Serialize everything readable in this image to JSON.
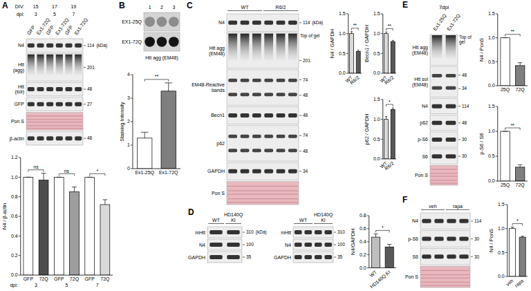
{
  "panels": [
    {
      "letter": "A",
      "header_rows": [
        {
          "label": "DIV:",
          "items": [
            "15",
            "17",
            "19"
          ]
        },
        {
          "label": "dpi:",
          "items": [
            "3",
            "5",
            "7"
          ]
        }
      ],
      "lanes": [
        "GFP",
        "Ex1-72Q",
        "GFP",
        "Ex1-72Q",
        "GFP",
        "Ex1-72Q"
      ],
      "unit": "(kDa)",
      "rows": [
        {
          "label": "N4",
          "kind": "band",
          "markers": [
            114
          ]
        },
        {
          "label": "Htt (agg)",
          "kind": "smear",
          "markers": [
            201
          ]
        },
        {
          "label": "Htt (sol)",
          "kind": "band",
          "markers": [
            48
          ]
        },
        {
          "label": "GFP",
          "kind": "band",
          "markers": [
            27
          ]
        },
        {
          "label": "Pon S",
          "kind": "ponceau",
          "markers": []
        },
        {
          "label": "β-actin",
          "kind": "band",
          "markers": [
            48
          ]
        }
      ]
    },
    {
      "letter": "B",
      "lanes": [
        "1",
        "2",
        "3"
      ],
      "rows": [
        {
          "label": "EX1-25Q",
          "kind": "dot",
          "markers": []
        },
        {
          "label": "EX1-72Q",
          "kind": "dot",
          "markers": []
        }
      ],
      "caption": "Htt agg (EM48)"
    },
    {
      "letter": "C",
      "groups": [
        {
          "label": "WT",
          "lanes": 3
        },
        {
          "label": "R6/2",
          "lanes": 3
        }
      ],
      "unit": "(kDa)",
      "rows": [
        {
          "label": "N4",
          "kind": "band",
          "markers": [
            114
          ]
        },
        {
          "label": "Htt agg (EM48)",
          "kind": "smear",
          "markers": [
            201
          ],
          "note": "Top of gel"
        },
        {
          "label": "EM48-Reactive bands",
          "kind": "tall",
          "markers": [
            74,
            48
          ]
        },
        {
          "label": "Becn1",
          "kind": "band",
          "markers": [
            48
          ]
        },
        {
          "label": "p62",
          "kind": "tall",
          "markers": [
            74,
            48
          ]
        },
        {
          "label": "GAPDH",
          "kind": "band",
          "markers": [
            34
          ]
        },
        {
          "label": "Pon S",
          "kind": "ponceau",
          "markers": []
        }
      ]
    },
    {
      "letter": "D",
      "unit": "(kDa)",
      "blots": [
        {
          "groups": [
            {
              "label": "WT",
              "lanes": 1
            },
            {
              "label": "HD140Q KI",
              "lanes": 1
            }
          ],
          "rows": [
            {
              "label": "mHtt",
              "kind": "band",
              "markers": [
                310
              ]
            },
            {
              "label": "N4",
              "kind": "band",
              "markers": [
                100
              ]
            },
            {
              "label": "GAPDH",
              "kind": "band",
              "markers": [
                35
              ]
            }
          ]
        },
        {
          "groups": [
            {
              "label": "WT",
              "lanes": 2
            },
            {
              "label": "HD140Q KI",
              "lanes": 2
            }
          ],
          "rows": [
            {
              "label": "mHtt",
              "kind": "band",
              "markers": [
                310
              ]
            },
            {
              "label": "N4",
              "kind": "band",
              "markers": [
                100
              ]
            },
            {
              "label": "GAPDH",
              "kind": "band",
              "markers": [
                35
              ]
            }
          ]
        }
      ]
    },
    {
      "letter": "E",
      "title": "7dpi",
      "lanes": [
        "Ex1-25Q",
        "Ex1-72Q"
      ],
      "rows": [
        {
          "label": "Htt agg (EM48)",
          "kind": "smear",
          "markers": [],
          "note": "Top of gel"
        },
        {
          "label": "Htt sol (EM48)",
          "kind": "tall",
          "markers": [
            48,
            34
          ]
        },
        {
          "label": "N4",
          "kind": "band",
          "markers": [
            114
          ]
        },
        {
          "label": "p62",
          "kind": "band",
          "markers": [
            48
          ]
        },
        {
          "label": "p-S6",
          "kind": "band",
          "markers": [
            30
          ]
        },
        {
          "label": "S6",
          "kind": "band",
          "markers": [
            30
          ]
        },
        {
          "label": "Pon S",
          "kind": "ponceau",
          "markers": []
        }
      ]
    },
    {
      "letter": "F",
      "groups": [
        {
          "label": "veh",
          "lanes": 2
        },
        {
          "label": "rapa",
          "lanes": 2
        }
      ],
      "rows": [
        {
          "label": "N4",
          "kind": "band",
          "markers": [
            114
          ]
        },
        {
          "label": "p-S6",
          "kind": "band",
          "markers": [
            30
          ]
        },
        {
          "label": "S6",
          "kind": "band",
          "markers": [
            30
          ]
        },
        {
          "label": "Pon S",
          "kind": "ponceau",
          "markers": []
        }
      ]
    }
  ],
  "chart_data": [
    {
      "type": "bar",
      "ylabel": "N4 / β-actin",
      "categories": [
        "GFP",
        "72Q",
        "GFP",
        "72Q",
        "GFP",
        "72Q"
      ],
      "values": [
        1,
        0.97,
        1,
        0.85,
        1,
        0.72
      ],
      "errors": [
        0,
        0.07,
        0,
        0.05,
        0,
        0.05
      ],
      "colors": [
        "#ffffff",
        "#4d4d4d",
        "#ffffff",
        "#9e9e9e",
        "#ffffff",
        "#d9d9d9"
      ],
      "ylim": [
        0,
        1.2
      ],
      "yticks": [
        {
          "value": 0,
          "label": "0.0"
        },
        0.2,
        0.4,
        0.6,
        0.8,
        {
          "value": 1,
          "label": "1.0"
        },
        1.2
      ],
      "annotations": [
        {
          "label": "ns",
          "from": 0,
          "to": 1
        },
        {
          "label": "ns",
          "from": 2,
          "to": 3
        },
        {
          "label": "*",
          "from": 4,
          "to": 5
        }
      ],
      "group_title": "dpi:",
      "groups": [
        "3",
        "5",
        "7"
      ]
    },
    {
      "type": "bar",
      "ylabel": "Staining Intensity",
      "categories": [
        "Ex1-25Q",
        "Ex1-72Q"
      ],
      "values": [
        1.3,
        3.3
      ],
      "errors": [
        0.25,
        0.35
      ],
      "colors": [
        "#ffffff",
        "#7f7f7f"
      ],
      "ylim": [
        0,
        4
      ],
      "yticks": [
        0,
        1,
        2,
        3,
        4
      ],
      "annotations": [
        {
          "label": "**",
          "from": 0,
          "to": 1
        }
      ]
    },
    {
      "type": "bar",
      "ylabel": "N4 / GAPDH",
      "categories": [
        "WT",
        "R6/2"
      ],
      "values": [
        1,
        0.55
      ],
      "errors": [
        0.05,
        0.03
      ],
      "colors": [
        "#d9d9d9",
        "#595959"
      ],
      "ylim": [
        0,
        1.5
      ],
      "yticks": [
        {
          "value": 0,
          "label": "0.0"
        },
        0.5,
        {
          "value": 1,
          "label": "1.0"
        },
        1.5
      ],
      "annotations": [
        {
          "label": "**",
          "from": 0,
          "to": 1
        }
      ]
    },
    {
      "type": "bar",
      "ylabel": "Becn1 / GAPDH",
      "categories": [
        "WT",
        "R6/2"
      ],
      "values": [
        1,
        0.8
      ],
      "errors": [
        0.04,
        0.03
      ],
      "colors": [
        "#d9d9d9",
        "#595959"
      ],
      "ylim": [
        0,
        1.5
      ],
      "yticks": [
        {
          "value": 0,
          "label": "0.0"
        },
        0.5,
        {
          "value": 1,
          "label": "1.0"
        },
        1.5
      ],
      "annotations": [
        {
          "label": "**",
          "from": 0,
          "to": 1
        }
      ]
    },
    {
      "type": "bar",
      "ylabel": "p62 / GAPDH",
      "categories": [
        "WT",
        "R6/2"
      ],
      "values": [
        1,
        1.25
      ],
      "errors": [
        0.07,
        0.04
      ],
      "colors": [
        "#d9d9d9",
        "#595959"
      ],
      "ylim": [
        0,
        1.5
      ],
      "yticks": [
        {
          "value": 0,
          "label": "0.0"
        },
        0.5,
        {
          "value": 1,
          "label": "1.0"
        },
        1.5
      ],
      "annotations": [
        {
          "label": "*",
          "from": 0,
          "to": 1
        }
      ]
    },
    {
      "type": "bar",
      "ylabel": "N4/GAPDH",
      "categories": [
        "WT",
        "HD140Q KI"
      ],
      "values": [
        0.47,
        0.32
      ],
      "errors": [
        0.05,
        0.04
      ],
      "colors": [
        "#bfbfbf",
        "#595959"
      ],
      "ylim": [
        0,
        0.8
      ],
      "yticks": [
        {
          "value": 0,
          "label": "0.0"
        },
        0.2,
        0.4,
        0.6,
        0.8
      ],
      "annotations": [
        {
          "label": "*",
          "from": 0,
          "to": 1
        }
      ]
    },
    {
      "type": "bar",
      "ylabel": "N4 / PonS",
      "categories": [
        "25Q",
        "72Q"
      ],
      "values": [
        1,
        0.42
      ],
      "errors": [
        0,
        0.06
      ],
      "colors": [
        "#ffffff",
        "#7f7f7f"
      ],
      "ylim": [
        0,
        1.5
      ],
      "yticks": [
        {
          "value": 0,
          "label": "0.0"
        },
        0.5,
        {
          "value": 1,
          "label": "1.0"
        },
        1.5
      ],
      "annotations": [
        {
          "label": "**",
          "from": 0,
          "to": 1
        }
      ]
    },
    {
      "type": "bar",
      "ylabel": "p-S6 / S6",
      "categories": [
        "25Q",
        "72Q"
      ],
      "values": [
        1,
        0.28
      ],
      "errors": [
        0,
        0.05
      ],
      "colors": [
        "#ffffff",
        "#7f7f7f"
      ],
      "ylim": [
        0,
        1.5
      ],
      "yticks": [
        {
          "value": 0,
          "label": "0.0"
        },
        0.5,
        {
          "value": 1,
          "label": "1.0"
        },
        1.5
      ],
      "annotations": [
        {
          "label": "**",
          "from": 0,
          "to": 1
        }
      ]
    },
    {
      "type": "bar",
      "ylabel": "N4 / PonS",
      "categories": [
        "veh",
        "rapa"
      ],
      "values": [
        1,
        0.82
      ],
      "errors": [
        0.03,
        0.02
      ],
      "colors": [
        "#ffffff",
        "#7f7f7f"
      ],
      "ylim": [
        0,
        1.5
      ],
      "yticks": [
        {
          "value": 0,
          "label": "0.0"
        },
        0.5,
        {
          "value": 1,
          "label": "1.0"
        },
        1.5
      ],
      "annotations": [
        {
          "label": "*",
          "from": 0,
          "to": 1
        }
      ]
    }
  ]
}
